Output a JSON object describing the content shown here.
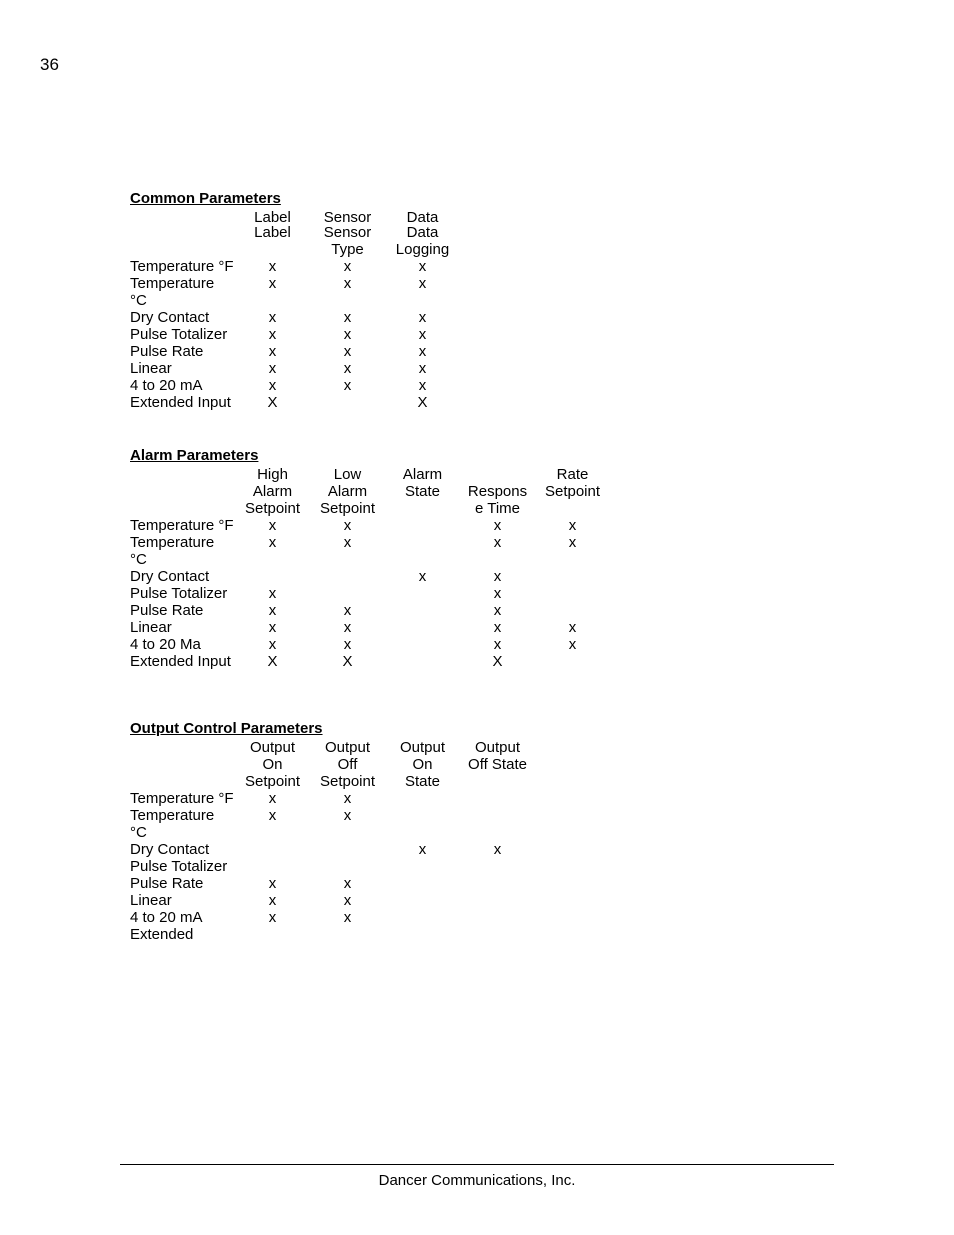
{
  "page_number": "36",
  "footer": "Dancer Communications, Inc.",
  "row_labels": [
    "Temperature °F",
    "Temperature °C",
    "Dry Contact",
    "Pulse Totalizer",
    "Pulse Rate",
    "Linear",
    "4 to 20 mA",
    "Extended Input"
  ],
  "row_labels_alarm_ma": "4 to 20 Ma",
  "row_label_extended_short": "Extended",
  "sections": {
    "common": {
      "title": "Common Parameters",
      "columns": [
        "Label",
        "Sensor Type",
        "Data Logging"
      ],
      "rows": [
        [
          "x",
          "x",
          "x"
        ],
        [
          "x",
          "x",
          "x"
        ],
        [
          "x",
          "x",
          "x"
        ],
        [
          "x",
          "x",
          "x"
        ],
        [
          "x",
          "x",
          "x"
        ],
        [
          "x",
          "x",
          "x"
        ],
        [
          "x",
          "x",
          "x"
        ],
        [
          "X",
          "",
          "X"
        ]
      ]
    },
    "alarm": {
      "title": "Alarm Parameters",
      "columns": [
        "High Alarm Setpoint",
        "Low Alarm Setpoint",
        "Alarm State",
        "Response Time",
        "Rate Setpoint"
      ],
      "col_lines": {
        "c0": [
          "High",
          "Alarm",
          "Setpoint"
        ],
        "c1": [
          "Low",
          "Alarm",
          "Setpoint"
        ],
        "c2": [
          "Alarm",
          "State",
          ""
        ],
        "c3": [
          "",
          "Respons",
          "e Time"
        ],
        "c4": [
          "Rate",
          "Setpoint",
          ""
        ]
      },
      "rows": [
        [
          "x",
          "x",
          "",
          "x",
          "x"
        ],
        [
          "x",
          "x",
          "",
          "x",
          "x"
        ],
        [
          "",
          "",
          "x",
          "x",
          ""
        ],
        [
          "x",
          "",
          "",
          "x",
          ""
        ],
        [
          "x",
          "x",
          "",
          "x",
          ""
        ],
        [
          "x",
          "x",
          "",
          "x",
          "x"
        ],
        [
          "x",
          "x",
          "",
          "x",
          "x"
        ],
        [
          "X",
          "X",
          "",
          "X",
          ""
        ]
      ]
    },
    "output": {
      "title": "Output Control Parameters",
      "columns": [
        "Output On Setpoint",
        "Output Off Setpoint",
        "Output On State",
        "Output Off State"
      ],
      "col_lines": {
        "c0": [
          "Output",
          "On",
          "Setpoint"
        ],
        "c1": [
          "Output",
          "Off",
          "Setpoint"
        ],
        "c2": [
          "Output",
          "On",
          "State"
        ],
        "c3": [
          "Output",
          "Off State",
          ""
        ]
      },
      "rows": [
        [
          "x",
          "x",
          "",
          ""
        ],
        [
          "x",
          "x",
          "",
          ""
        ],
        [
          "",
          "",
          "x",
          "x"
        ],
        [
          "",
          "",
          "",
          ""
        ],
        [
          "x",
          "x",
          "",
          ""
        ],
        [
          "x",
          "x",
          "",
          ""
        ],
        [
          "x",
          "x",
          "",
          ""
        ],
        [
          "",
          "",
          "",
          ""
        ]
      ]
    }
  }
}
